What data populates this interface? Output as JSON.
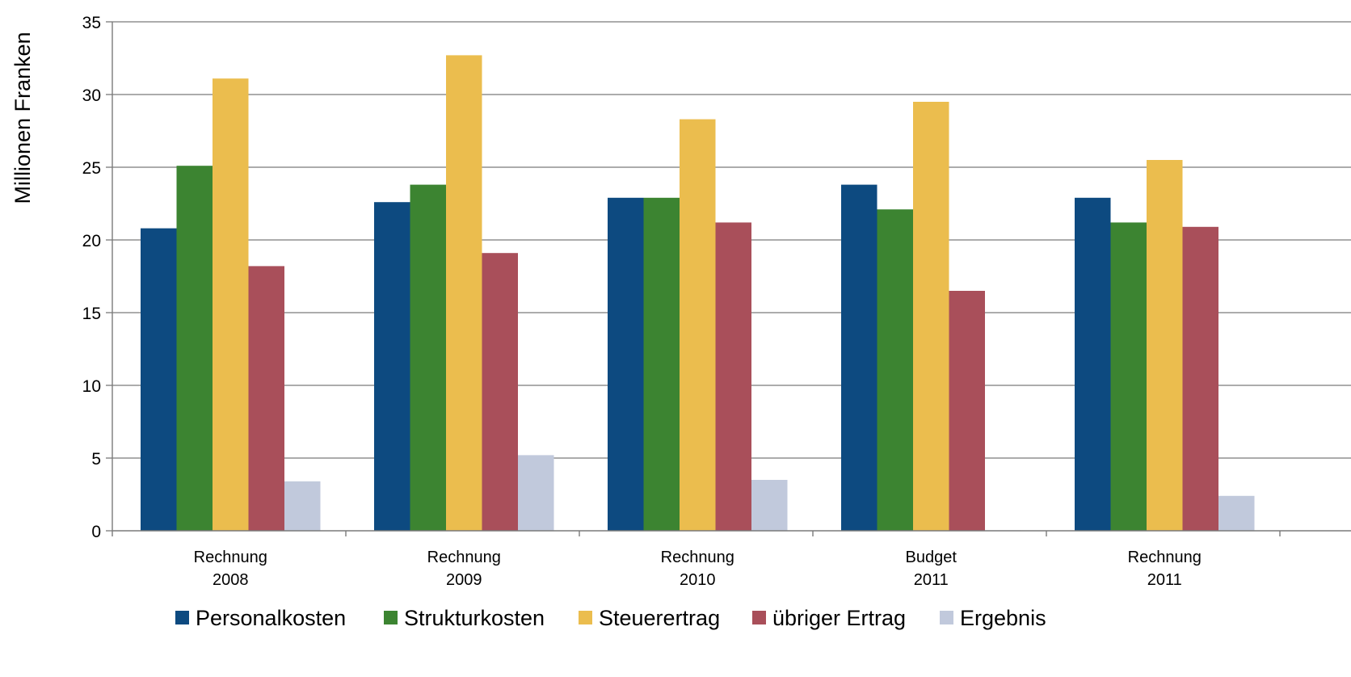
{
  "chart_data": {
    "type": "bar",
    "title": "",
    "xlabel": "",
    "ylabel": "Millionen Franken",
    "ylim": [
      0,
      35
    ],
    "yticks": [
      0,
      5,
      10,
      15,
      20,
      25,
      30,
      35
    ],
    "grid": true,
    "legend_position": "bottom",
    "categories": [
      [
        "Rechnung",
        "2008"
      ],
      [
        "Rechnung",
        "2009"
      ],
      [
        "Rechnung",
        "2010"
      ],
      [
        "Budget",
        "2011"
      ],
      [
        "Rechnung",
        "2011"
      ]
    ],
    "series": [
      {
        "name": "Personalkosten",
        "color": "#0d4a80",
        "values": [
          20.8,
          22.6,
          22.9,
          23.8,
          22.9
        ]
      },
      {
        "name": "Strukturkosten",
        "color": "#3c8431",
        "values": [
          25.1,
          23.8,
          22.9,
          22.1,
          21.2
        ]
      },
      {
        "name": "Steuerertrag",
        "color": "#ebbd4e",
        "values": [
          31.1,
          32.7,
          28.3,
          29.5,
          25.5
        ]
      },
      {
        "name": "übriger Ertrag",
        "color": "#a94f5a",
        "values": [
          18.2,
          19.1,
          21.2,
          16.5,
          20.9
        ]
      },
      {
        "name": "Ergebnis",
        "color": "#c1c9dc",
        "values": [
          3.4,
          5.2,
          3.5,
          0.0,
          2.4
        ]
      }
    ]
  }
}
